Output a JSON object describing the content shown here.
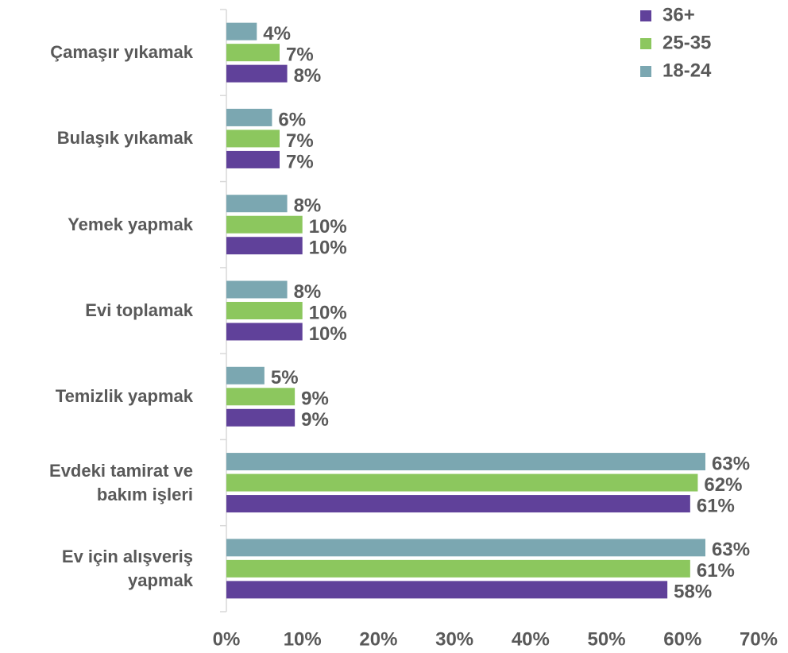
{
  "chart_data": {
    "type": "bar",
    "orientation": "horizontal",
    "categories": [
      "Çamaşır yıkamak",
      "Bulaşık yıkamak",
      "Yemek yapmak",
      "Evi toplamak",
      "Temizlik yapmak",
      "Evdeki tamirat ve bakım işleri",
      "Ev için alışveriş yapmak"
    ],
    "series": [
      {
        "name": "36+",
        "color": "#60419a",
        "values": [
          8,
          7,
          10,
          10,
          9,
          61,
          58
        ],
        "value_labels": [
          "8%",
          "7%",
          "10%",
          "10%",
          "9%",
          "61%",
          "58%"
        ]
      },
      {
        "name": "25-35",
        "color": "#8cc75e",
        "values": [
          7,
          7,
          10,
          10,
          9,
          62,
          61
        ],
        "value_labels": [
          "7%",
          "7%",
          "10%",
          "10%",
          "9%",
          "62%",
          "61%"
        ]
      },
      {
        "name": "18-24",
        "color": "#7ba7b1",
        "values": [
          4,
          6,
          8,
          8,
          5,
          63,
          63
        ],
        "value_labels": [
          "4%",
          "6%",
          "8%",
          "8%",
          "5%",
          "63%",
          "63%"
        ]
      }
    ],
    "xlim": [
      0,
      70
    ],
    "xticks": [
      {
        "value": 0,
        "label": "0%"
      },
      {
        "value": 10,
        "label": "10%"
      },
      {
        "value": 20,
        "label": "20%"
      },
      {
        "value": 30,
        "label": "30%"
      },
      {
        "value": 40,
        "label": "40%"
      },
      {
        "value": 50,
        "label": "50%"
      },
      {
        "value": 60,
        "label": "60%"
      },
      {
        "value": 70,
        "label": "70%"
      }
    ],
    "legend": "top-right"
  }
}
